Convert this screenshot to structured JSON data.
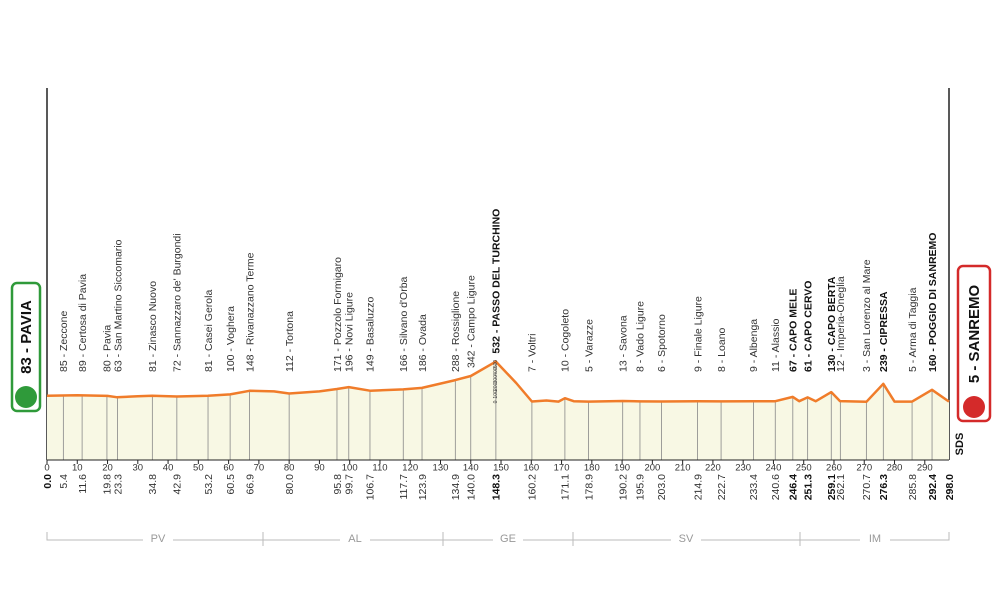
{
  "chart_data": {
    "type": "area",
    "start": "83 - PAVIA",
    "finish": "5 - SANREMO",
    "start_km": {
      "value": 0,
      "label": "0.0"
    },
    "finish_km": {
      "value": 298,
      "label": "298.0"
    },
    "logo": "SDS",
    "line_color": "#f07c2a",
    "fill_color": "#f8f8e4",
    "xlim": [
      0,
      298
    ],
    "xticks": [
      0,
      10,
      20,
      30,
      40,
      50,
      60,
      70,
      80,
      90,
      100,
      110,
      120,
      130,
      140,
      150,
      160,
      170,
      180,
      190,
      200,
      210,
      220,
      230,
      240,
      250,
      260,
      270,
      280,
      290
    ],
    "ylim": [
      0,
      500
    ],
    "yticks": [
      0,
      100,
      200,
      300,
      400,
      500
    ],
    "x": [
      0,
      10,
      20,
      23,
      30,
      34.8,
      42.9,
      53.2,
      60.5,
      66.9,
      75,
      80,
      90,
      95.8,
      99.7,
      106.7,
      117.7,
      123.9,
      134.9,
      140,
      148.3,
      155,
      160.2,
      165,
      169,
      171.1,
      174,
      178.9,
      190.2,
      195.9,
      203,
      214.9,
      222.7,
      233.4,
      240.6,
      246.4,
      248.5,
      251.3,
      254,
      259.1,
      262,
      270.7,
      276.3,
      280,
      285.8,
      292.4,
      298
    ],
    "values": [
      83,
      89,
      80,
      63,
      75,
      81,
      72,
      81,
      100,
      148,
      140,
      112,
      140,
      171,
      196,
      149,
      166,
      186,
      288,
      342,
      532,
      250,
      7,
      20,
      5,
      50,
      10,
      5,
      13,
      8,
      6,
      9,
      8,
      9,
      11,
      67,
      10,
      61,
      10,
      130,
      12,
      3,
      239,
      5,
      5,
      160,
      5
    ],
    "waypoints": [
      {
        "name": "85 - Zeccone",
        "km": {
          "value": 5.4,
          "label": "5.4"
        }
      },
      {
        "name": "89 - Certosa di Pavia",
        "km": {
          "value": 11.6,
          "label": "11.6"
        }
      },
      {
        "name": "80 - Pavia",
        "km": {
          "value": 19.8,
          "label": "19.8"
        }
      },
      {
        "name": "63 - San Martino Siccomario",
        "km": {
          "value": 23.3,
          "label": "23.3"
        }
      },
      {
        "name": "81 - Zinasco Nuovo",
        "km": {
          "value": 34.8,
          "label": "34.8"
        }
      },
      {
        "name": "72 - Sannazzaro de' Burgondi",
        "km": {
          "value": 42.9,
          "label": "42.9"
        }
      },
      {
        "name": "81 - Casei Gerola",
        "km": {
          "value": 53.2,
          "label": "53.2"
        }
      },
      {
        "name": "100 - Voghera",
        "km": {
          "value": 60.5,
          "label": "60.5"
        }
      },
      {
        "name": "148 - Rivanazzano Terme",
        "km": {
          "value": 66.9,
          "label": "66.9"
        }
      },
      {
        "name": "112 - Tortona",
        "km": {
          "value": 80,
          "label": "80.0"
        }
      },
      {
        "name": "171 - Pozzolo Formigaro",
        "km": {
          "value": 95.8,
          "label": "95.8"
        }
      },
      {
        "name": "196 - Novi Ligure",
        "km": {
          "value": 99.7,
          "label": "99.7"
        }
      },
      {
        "name": "149 - Basaluzzo",
        "km": {
          "value": 106.7,
          "label": "106.7"
        }
      },
      {
        "name": "166 - Silvano d'Orba",
        "km": {
          "value": 117.7,
          "label": "117.7"
        }
      },
      {
        "name": "186 - Ovada",
        "km": {
          "value": 123.9,
          "label": "123.9"
        }
      },
      {
        "name": "288 - Rossiglione",
        "km": {
          "value": 134.9,
          "label": "134.9"
        }
      },
      {
        "name": "342 - Campo Ligure",
        "km": {
          "value": 140,
          "label": "140.0"
        }
      },
      {
        "name": "532 - PASSO DEL TURCHINO",
        "km": {
          "value": 148.3,
          "label": "148.3"
        },
        "bold": true
      },
      {
        "name": "7 - Voltri",
        "km": {
          "value": 160.2,
          "label": "160.2"
        }
      },
      {
        "name": "10 - Cogoleto",
        "km": {
          "value": 171.1,
          "label": "171.1"
        }
      },
      {
        "name": "5 - Varazze",
        "km": {
          "value": 178.9,
          "label": "178.9"
        }
      },
      {
        "name": "13 - Savona",
        "km": {
          "value": 190.2,
          "label": "190.2"
        }
      },
      {
        "name": "8 - Vado Ligure",
        "km": {
          "value": 195.9,
          "label": "195.9"
        }
      },
      {
        "name": "6 - Spotorno",
        "km": {
          "value": 203,
          "label": "203.0"
        }
      },
      {
        "name": "9 - Finale Ligure",
        "km": {
          "value": 214.9,
          "label": "214.9"
        }
      },
      {
        "name": "8 - Loano",
        "km": {
          "value": 222.7,
          "label": "222.7"
        }
      },
      {
        "name": "9 - Albenga",
        "km": {
          "value": 233.4,
          "label": "233.4"
        }
      },
      {
        "name": "11 - Alassio",
        "km": {
          "value": 240.6,
          "label": "240.6"
        }
      },
      {
        "name": "67 - CAPO MELE",
        "km": {
          "value": 246.4,
          "label": "246.4"
        },
        "bold": true
      },
      {
        "name": "61 - CAPO CERVO",
        "km": {
          "value": 251.3,
          "label": "251.3"
        },
        "bold": true
      },
      {
        "name": "130 - CAPO BERTA",
        "km": {
          "value": 259.1,
          "label": "259.1"
        },
        "bold": true
      },
      {
        "name": "12 - Imperia-Oneglia",
        "km": {
          "value": 262.1,
          "label": "262.1"
        }
      },
      {
        "name": "3 - San Lorenzo al Mare",
        "km": {
          "value": 270.7,
          "label": "270.7"
        }
      },
      {
        "name": "239 - CIPRESSA",
        "km": {
          "value": 276.3,
          "label": "276.3"
        },
        "bold": true
      },
      {
        "name": "5 - Arma di Taggia",
        "km": {
          "value": 285.8,
          "label": "285.8"
        }
      },
      {
        "name": "160 - POGGIO DI SANREMO",
        "km": {
          "value": 292.4,
          "label": "292.4"
        },
        "bold": true
      }
    ],
    "regions": [
      "PV",
      "AL",
      "GE",
      "SV",
      "IM"
    ]
  }
}
